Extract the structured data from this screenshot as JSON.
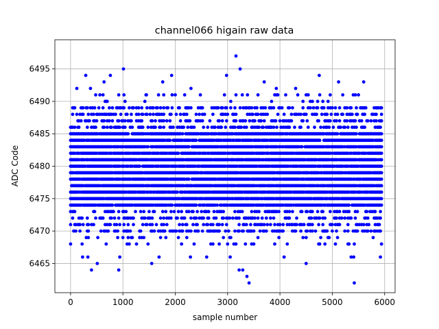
{
  "chart_data": {
    "type": "scatter",
    "title": "channel066 higain raw data",
    "xlabel": "sample number",
    "ylabel": "ADC Code",
    "xlim": [
      -300,
      6200
    ],
    "ylim": [
      6460.5,
      6499.5
    ],
    "xticks": [
      0,
      1000,
      2000,
      3000,
      4000,
      5000,
      6000
    ],
    "yticks": [
      6465,
      6470,
      6475,
      6480,
      6485,
      6490,
      6495
    ],
    "grid": true,
    "marker_color": "#0000ff",
    "sample_step": 20,
    "n_samples": 5940,
    "core_levels": [
      6474,
      6475,
      6476,
      6477,
      6478,
      6479,
      6480,
      6481,
      6482,
      6483,
      6484,
      6485
    ],
    "mid_levels": [
      6470,
      6471,
      6472,
      6473,
      6486,
      6487,
      6488,
      6489
    ],
    "outliers": [
      [
        3160,
        6497
      ],
      [
        3240,
        6495
      ],
      [
        1010,
        6495
      ],
      [
        290,
        6494
      ],
      [
        760,
        6494
      ],
      [
        1930,
        6494
      ],
      [
        2980,
        6494
      ],
      [
        4750,
        6494
      ],
      [
        5600,
        6493
      ],
      [
        3930,
        6492
      ],
      [
        4110,
        6491
      ],
      [
        5120,
        6493
      ],
      [
        3700,
        6493
      ],
      [
        1760,
        6493
      ],
      [
        1450,
        6491
      ],
      [
        2300,
        6492
      ],
      [
        4300,
        6492
      ],
      [
        640,
        6493
      ],
      [
        120,
        6492
      ],
      [
        380,
        6492
      ],
      [
        3410,
        6462
      ],
      [
        3370,
        6463
      ],
      [
        3220,
        6464
      ],
      [
        3290,
        6464
      ],
      [
        400,
        6464
      ],
      [
        920,
        6464
      ],
      [
        5420,
        6462
      ],
      [
        4500,
        6465
      ],
      [
        1550,
        6465
      ],
      [
        510,
        6465
      ],
      [
        230,
        6466
      ],
      [
        1690,
        6466
      ],
      [
        2600,
        6466
      ],
      [
        5920,
        6466
      ],
      [
        3050,
        6466
      ],
      [
        4080,
        6466
      ],
      [
        5360,
        6466
      ],
      [
        940,
        6466
      ],
      [
        2290,
        6466
      ],
      [
        330,
        6466
      ],
      [
        5410,
        6466
      ]
    ]
  }
}
